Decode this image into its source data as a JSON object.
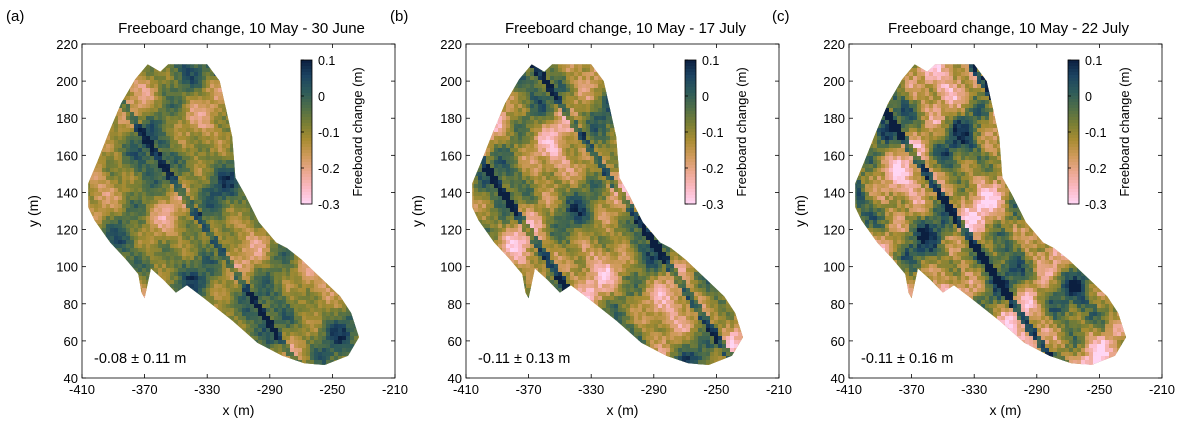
{
  "colorbar": {
    "label": "Freeboard change (m)",
    "ticks": [
      0.1,
      0,
      -0.1,
      -0.2,
      -0.3
    ],
    "tick_labels": [
      "0.1",
      "0",
      "-0.1",
      "-0.2",
      "-0.3"
    ],
    "range": [
      -0.3,
      0.1
    ],
    "colormap": [
      "#ffd6f4",
      "#fcb9c4",
      "#eba78f",
      "#cf9a5a",
      "#a88c33",
      "#7a7f34",
      "#4f6e48",
      "#2e5b5a",
      "#1c4361",
      "#0b1f40"
    ]
  },
  "chart_data": [
    {
      "type": "heatmap",
      "panel_label": "(a)",
      "title": "Freeboard change, 10 May - 30 June",
      "xlabel": "x (m)",
      "ylabel": "y (m)",
      "xlim": [
        -410,
        -210
      ],
      "ylim": [
        40,
        220
      ],
      "xticks": [
        -410,
        -370,
        -330,
        -290,
        -250,
        -210
      ],
      "yticks": [
        40,
        60,
        80,
        100,
        120,
        140,
        160,
        180,
        200,
        220
      ],
      "xtick_labels": [
        "-410",
        "-370",
        "-330",
        "-290",
        "-250",
        "-210"
      ],
      "ytick_labels": [
        "40",
        "60",
        "80",
        "100",
        "120",
        "140",
        "160",
        "180",
        "200",
        "220"
      ],
      "annotation": "-0.08 ± 0.11 m",
      "mean": -0.08,
      "std": 0.11
    },
    {
      "type": "heatmap",
      "panel_label": "(b)",
      "title": "Freeboard change, 10 May - 17 July",
      "xlabel": "x (m)",
      "ylabel": "y (m)",
      "xlim": [
        -410,
        -210
      ],
      "ylim": [
        40,
        220
      ],
      "xticks": [
        -410,
        -370,
        -330,
        -290,
        -250,
        -210
      ],
      "yticks": [
        40,
        60,
        80,
        100,
        120,
        140,
        160,
        180,
        200,
        220
      ],
      "xtick_labels": [
        "-410",
        "-370",
        "-330",
        "-290",
        "-250",
        "-210"
      ],
      "ytick_labels": [
        "40",
        "60",
        "80",
        "100",
        "120",
        "140",
        "160",
        "180",
        "200",
        "220"
      ],
      "annotation": "-0.11 ± 0.13 m",
      "mean": -0.11,
      "std": 0.13
    },
    {
      "type": "heatmap",
      "panel_label": "(c)",
      "title": "Freeboard change, 10 May - 22 July",
      "xlabel": "x (m)",
      "ylabel": "y (m)",
      "xlim": [
        -410,
        -210
      ],
      "ylim": [
        40,
        220
      ],
      "xticks": [
        -410,
        -370,
        -330,
        -290,
        -250,
        -210
      ],
      "yticks": [
        40,
        60,
        80,
        100,
        120,
        140,
        160,
        180,
        200,
        220
      ],
      "xtick_labels": [
        "-410",
        "-370",
        "-330",
        "-290",
        "-250",
        "-210"
      ],
      "ytick_labels": [
        "40",
        "60",
        "80",
        "100",
        "120",
        "140",
        "160",
        "180",
        "200",
        "220"
      ],
      "annotation": "-0.11 ± 0.16 m",
      "mean": -0.11,
      "std": 0.16
    }
  ]
}
